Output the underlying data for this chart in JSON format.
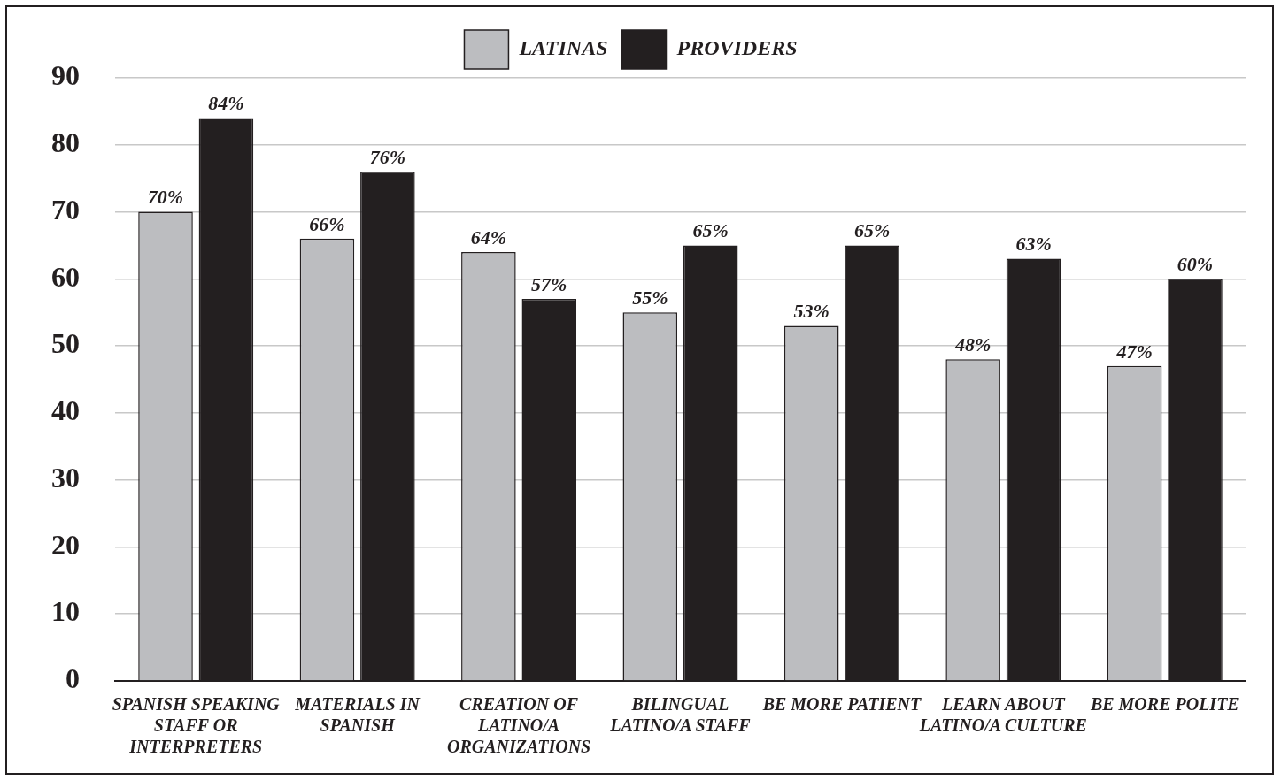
{
  "chart_data": {
    "type": "bar",
    "categories": [
      "SPANISH SPEAKING STAFF OR INTERPRETERS",
      "MATERIALS IN SPANISH",
      "CREATION OF LATINO/A ORGANIZATIONS",
      "BILINGUAL LATINO/A STAFF",
      "BE MORE PATIENT",
      "LEARN ABOUT LATINO/A CULTURE",
      "BE MORE POLITE"
    ],
    "series": [
      {
        "name": "LATINAS",
        "color": "#bcbdc0",
        "values": [
          70,
          66,
          64,
          55,
          53,
          48,
          47
        ],
        "value_labels": [
          "70%",
          "66%",
          "64%",
          "55%",
          "53%",
          "48%",
          "47%"
        ]
      },
      {
        "name": "PROVIDERS",
        "color": "#231f20",
        "values": [
          84,
          76,
          57,
          65,
          65,
          63,
          60
        ],
        "value_labels": [
          "84%",
          "76%",
          "57%",
          "65%",
          "65%",
          "63%",
          "60%"
        ]
      }
    ],
    "ylim": [
      0,
      90
    ],
    "yticks": [
      0,
      10,
      20,
      30,
      40,
      50,
      60,
      70,
      80,
      90
    ],
    "grid": "y",
    "legend": "top"
  }
}
